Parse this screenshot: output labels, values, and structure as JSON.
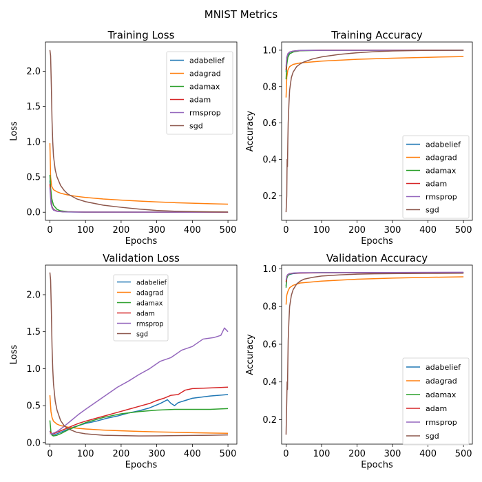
{
  "figure": {
    "title": "MNIST Metrics"
  },
  "chart_data": [
    {
      "type": "line",
      "title": "Training Loss",
      "xlabel": "Epochs",
      "ylabel": "Loss",
      "xlim": [
        -12.5,
        525
      ],
      "ylim": [
        -0.115,
        2.415
      ],
      "xticks": [
        0,
        100,
        200,
        300,
        400,
        500
      ],
      "yticks": [
        0.0,
        0.5,
        1.0,
        1.5,
        2.0
      ],
      "xtick_labels": [
        "0",
        "100",
        "200",
        "300",
        "400",
        "500"
      ],
      "ytick_labels": [
        "0.0",
        "0.5",
        "1.0",
        "1.5",
        "2.0"
      ],
      "legend": "top-right",
      "grid": false,
      "series": [
        {
          "name": "adabelief",
          "color": "#1f77b4",
          "x": [
            0,
            3,
            6,
            10,
            20,
            40,
            100,
            500
          ],
          "values": [
            0.45,
            0.18,
            0.08,
            0.04,
            0.015,
            0.005,
            0.001,
            0.0
          ]
        },
        {
          "name": "adagrad",
          "color": "#ff7f0e",
          "x": [
            0,
            2,
            5,
            10,
            20,
            30,
            50,
            75,
            100,
            150,
            200,
            250,
            300,
            350,
            400,
            450,
            500
          ],
          "values": [
            0.98,
            0.5,
            0.37,
            0.32,
            0.29,
            0.27,
            0.245,
            0.225,
            0.21,
            0.188,
            0.172,
            0.158,
            0.146,
            0.136,
            0.128,
            0.121,
            0.115
          ]
        },
        {
          "name": "adamax",
          "color": "#2ca02c",
          "x": [
            0,
            2,
            5,
            10,
            20,
            30,
            50,
            100,
            500
          ],
          "values": [
            0.53,
            0.35,
            0.2,
            0.1,
            0.04,
            0.02,
            0.008,
            0.002,
            0.0
          ]
        },
        {
          "name": "adam",
          "color": "#d62728",
          "x": [
            0,
            3,
            6,
            10,
            20,
            40,
            100,
            500
          ],
          "values": [
            0.4,
            0.15,
            0.07,
            0.035,
            0.015,
            0.006,
            0.002,
            0.0
          ]
        },
        {
          "name": "rmsprop",
          "color": "#9467bd",
          "x": [
            0,
            3,
            6,
            10,
            20,
            40,
            100,
            500
          ],
          "values": [
            0.35,
            0.12,
            0.06,
            0.03,
            0.012,
            0.005,
            0.002,
            0.001
          ]
        },
        {
          "name": "sgd",
          "color": "#8c564b",
          "x": [
            0,
            2,
            4,
            6,
            8,
            10,
            15,
            20,
            30,
            40,
            50,
            75,
            100,
            150,
            200,
            250,
            300,
            350,
            400,
            450,
            500
          ],
          "values": [
            2.3,
            2.22,
            1.8,
            1.3,
            1.0,
            0.8,
            0.6,
            0.5,
            0.38,
            0.31,
            0.26,
            0.19,
            0.15,
            0.1,
            0.07,
            0.045,
            0.025,
            0.015,
            0.01,
            0.006,
            0.004
          ]
        }
      ]
    },
    {
      "type": "line",
      "title": "Training Accuracy",
      "xlabel": "Epochs",
      "ylabel": "Accuracy",
      "xlim": [
        -12.5,
        525
      ],
      "ylim": [
        0.065,
        1.045
      ],
      "xticks": [
        0,
        100,
        200,
        300,
        400,
        500
      ],
      "yticks": [
        0.2,
        0.4,
        0.6,
        0.8,
        1.0
      ],
      "xtick_labels": [
        "0",
        "100",
        "200",
        "300",
        "400",
        "500"
      ],
      "ytick_labels": [
        "0.2",
        "0.4",
        "0.6",
        "0.8",
        "1.0"
      ],
      "legend": "lower-right",
      "grid": false,
      "series": [
        {
          "name": "adabelief",
          "color": "#1f77b4",
          "x": [
            0,
            2,
            5,
            10,
            20,
            40,
            100,
            500
          ],
          "values": [
            0.88,
            0.95,
            0.975,
            0.988,
            0.995,
            0.999,
            1.0,
            1.0
          ]
        },
        {
          "name": "adagrad",
          "color": "#ff7f0e",
          "x": [
            0,
            2,
            5,
            10,
            20,
            40,
            100,
            200,
            300,
            400,
            500
          ],
          "values": [
            0.74,
            0.85,
            0.89,
            0.91,
            0.922,
            0.93,
            0.94,
            0.95,
            0.956,
            0.961,
            0.965
          ]
        },
        {
          "name": "adamax",
          "color": "#2ca02c",
          "x": [
            0,
            2,
            5,
            10,
            20,
            40,
            100,
            500
          ],
          "values": [
            0.84,
            0.92,
            0.96,
            0.98,
            0.99,
            0.997,
            0.999,
            1.0
          ]
        },
        {
          "name": "adam",
          "color": "#d62728",
          "x": [
            0,
            2,
            5,
            10,
            20,
            40,
            100,
            500
          ],
          "values": [
            0.89,
            0.96,
            0.98,
            0.99,
            0.995,
            0.998,
            1.0,
            1.0
          ]
        },
        {
          "name": "rmsprop",
          "color": "#9467bd",
          "x": [
            0,
            2,
            5,
            10,
            20,
            40,
            100,
            500
          ],
          "values": [
            0.91,
            0.96,
            0.98,
            0.99,
            0.995,
            0.998,
            0.999,
            1.0
          ]
        },
        {
          "name": "sgd",
          "color": "#8c564b",
          "x": [
            0,
            2,
            3,
            4,
            5,
            6,
            8,
            10,
            15,
            20,
            30,
            40,
            50,
            75,
            100,
            150,
            200,
            250,
            300,
            400,
            500
          ],
          "values": [
            0.11,
            0.2,
            0.4,
            0.36,
            0.5,
            0.6,
            0.7,
            0.78,
            0.85,
            0.88,
            0.91,
            0.925,
            0.935,
            0.952,
            0.963,
            0.977,
            0.986,
            0.992,
            0.996,
            0.999,
            1.0
          ]
        }
      ]
    },
    {
      "type": "line",
      "title": "Validation Loss",
      "xlabel": "Epochs",
      "ylabel": "Loss",
      "xlim": [
        -12.5,
        525
      ],
      "ylim": [
        -0.02,
        2.4
      ],
      "xticks": [
        0,
        100,
        200,
        300,
        400,
        500
      ],
      "yticks": [
        0.0,
        0.5,
        1.0,
        1.5,
        2.0
      ],
      "xtick_labels": [
        "0",
        "100",
        "200",
        "300",
        "400",
        "500"
      ],
      "ytick_labels": [
        "0.0",
        "0.5",
        "1.0",
        "1.5",
        "2.0"
      ],
      "legend": "top-center",
      "grid": false,
      "series": [
        {
          "name": "adabelief",
          "color": "#1f77b4",
          "x": [
            0,
            5,
            10,
            20,
            40,
            60,
            80,
            100,
            130,
            160,
            190,
            220,
            250,
            280,
            310,
            330,
            340,
            350,
            360,
            380,
            400,
            450,
            500
          ],
          "values": [
            0.16,
            0.11,
            0.1,
            0.12,
            0.16,
            0.2,
            0.23,
            0.26,
            0.29,
            0.33,
            0.36,
            0.4,
            0.43,
            0.47,
            0.53,
            0.58,
            0.53,
            0.5,
            0.54,
            0.57,
            0.6,
            0.63,
            0.65
          ]
        },
        {
          "name": "adagrad",
          "color": "#ff7f0e",
          "x": [
            0,
            3,
            6,
            10,
            20,
            30,
            50,
            75,
            100,
            150,
            200,
            250,
            300,
            350,
            400,
            450,
            500
          ],
          "values": [
            0.64,
            0.42,
            0.34,
            0.29,
            0.25,
            0.23,
            0.21,
            0.195,
            0.185,
            0.17,
            0.16,
            0.152,
            0.145,
            0.14,
            0.135,
            0.13,
            0.126
          ]
        },
        {
          "name": "adamax",
          "color": "#2ca02c",
          "x": [
            0,
            3,
            6,
            10,
            20,
            30,
            50,
            75,
            100,
            150,
            200,
            250,
            300,
            350,
            400,
            450,
            500
          ],
          "values": [
            0.3,
            0.14,
            0.1,
            0.09,
            0.1,
            0.12,
            0.17,
            0.22,
            0.27,
            0.34,
            0.39,
            0.42,
            0.44,
            0.45,
            0.45,
            0.45,
            0.46
          ]
        },
        {
          "name": "adam",
          "color": "#d62728",
          "x": [
            0,
            5,
            10,
            20,
            40,
            60,
            80,
            100,
            130,
            160,
            190,
            220,
            250,
            280,
            300,
            320,
            340,
            360,
            370,
            380,
            400,
            450,
            500
          ],
          "values": [
            0.15,
            0.12,
            0.12,
            0.14,
            0.18,
            0.22,
            0.26,
            0.29,
            0.33,
            0.37,
            0.41,
            0.45,
            0.49,
            0.53,
            0.57,
            0.6,
            0.64,
            0.65,
            0.68,
            0.71,
            0.73,
            0.74,
            0.75
          ]
        },
        {
          "name": "rmsprop",
          "color": "#9467bd",
          "x": [
            0,
            5,
            10,
            20,
            40,
            60,
            80,
            100,
            130,
            160,
            190,
            220,
            250,
            280,
            310,
            340,
            370,
            400,
            430,
            460,
            480,
            490,
            500
          ],
          "values": [
            0.12,
            0.12,
            0.13,
            0.15,
            0.22,
            0.3,
            0.38,
            0.45,
            0.55,
            0.65,
            0.75,
            0.83,
            0.92,
            1.0,
            1.1,
            1.15,
            1.25,
            1.3,
            1.4,
            1.42,
            1.45,
            1.55,
            1.5
          ]
        },
        {
          "name": "sgd",
          "color": "#8c564b",
          "x": [
            0,
            2,
            4,
            6,
            8,
            10,
            15,
            20,
            30,
            40,
            50,
            75,
            100,
            150,
            200,
            250,
            300,
            350,
            400,
            450,
            500
          ],
          "values": [
            2.3,
            2.2,
            1.8,
            1.3,
            1.0,
            0.8,
            0.56,
            0.44,
            0.3,
            0.23,
            0.19,
            0.14,
            0.12,
            0.1,
            0.095,
            0.09,
            0.092,
            0.095,
            0.098,
            0.1,
            0.105
          ]
        }
      ]
    },
    {
      "type": "line",
      "title": "Validation Accuracy",
      "xlabel": "Epochs",
      "ylabel": "Accuracy",
      "xlim": [
        -12.5,
        525
      ],
      "ylim": [
        0.07,
        1.02
      ],
      "xticks": [
        0,
        100,
        200,
        300,
        400,
        500
      ],
      "yticks": [
        0.2,
        0.4,
        0.6,
        0.8,
        1.0
      ],
      "xtick_labels": [
        "0",
        "100",
        "200",
        "300",
        "400",
        "500"
      ],
      "ytick_labels": [
        "0.2",
        "0.4",
        "0.6",
        "0.8",
        "1.0"
      ],
      "legend": "lower-right",
      "grid": false,
      "series": [
        {
          "name": "adabelief",
          "color": "#1f77b4",
          "x": [
            0,
            2,
            5,
            10,
            20,
            40,
            100,
            500
          ],
          "values": [
            0.91,
            0.95,
            0.965,
            0.97,
            0.975,
            0.978,
            0.98,
            0.98
          ]
        },
        {
          "name": "adagrad",
          "color": "#ff7f0e",
          "x": [
            0,
            2,
            5,
            10,
            20,
            40,
            100,
            200,
            300,
            400,
            500
          ],
          "values": [
            0.81,
            0.86,
            0.88,
            0.9,
            0.913,
            0.925,
            0.935,
            0.945,
            0.951,
            0.955,
            0.958
          ]
        },
        {
          "name": "adamax",
          "color": "#2ca02c",
          "x": [
            0,
            2,
            5,
            10,
            20,
            40,
            100,
            500
          ],
          "values": [
            0.9,
            0.95,
            0.965,
            0.972,
            0.977,
            0.979,
            0.98,
            0.98
          ]
        },
        {
          "name": "adam",
          "color": "#d62728",
          "x": [
            0,
            2,
            5,
            10,
            20,
            40,
            100,
            500
          ],
          "values": [
            0.93,
            0.96,
            0.97,
            0.975,
            0.977,
            0.978,
            0.979,
            0.98
          ]
        },
        {
          "name": "rmsprop",
          "color": "#9467bd",
          "x": [
            0,
            2,
            5,
            10,
            20,
            40,
            100,
            500
          ],
          "values": [
            0.94,
            0.96,
            0.97,
            0.975,
            0.978,
            0.98,
            0.98,
            0.982
          ]
        },
        {
          "name": "sgd",
          "color": "#8c564b",
          "x": [
            0,
            2,
            3,
            4,
            5,
            6,
            8,
            10,
            15,
            20,
            30,
            40,
            50,
            75,
            100,
            150,
            200,
            250,
            300,
            400,
            500
          ],
          "values": [
            0.12,
            0.3,
            0.4,
            0.36,
            0.5,
            0.62,
            0.72,
            0.8,
            0.86,
            0.89,
            0.92,
            0.935,
            0.945,
            0.955,
            0.962,
            0.968,
            0.972,
            0.974,
            0.975,
            0.976,
            0.977
          ]
        }
      ]
    }
  ]
}
